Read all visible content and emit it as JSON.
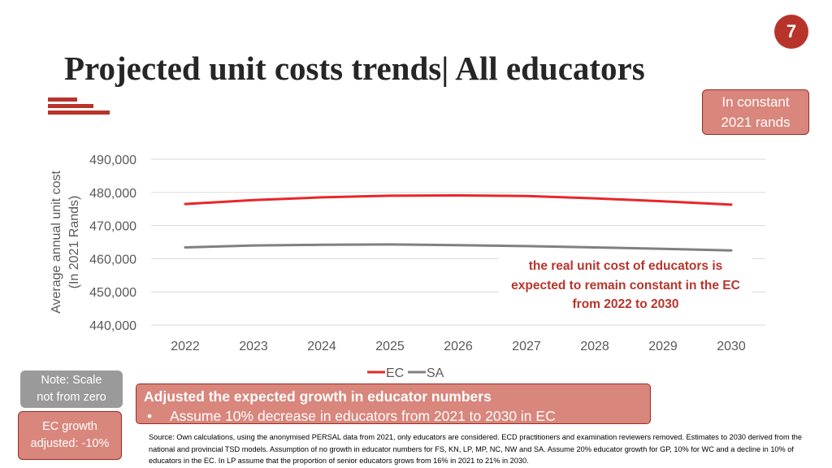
{
  "page_number": "7",
  "title": "Projected unit costs trends| All educators",
  "units_badge": {
    "line1": "In constant",
    "line2": "2021 rands"
  },
  "chart_data": {
    "type": "line",
    "x": [
      "2022",
      "2023",
      "2024",
      "2025",
      "2026",
      "2027",
      "2028",
      "2029",
      "2030"
    ],
    "series": [
      {
        "name": "EC",
        "color": "#e8262a",
        "values": [
          476500,
          477700,
          478500,
          479000,
          479100,
          478900,
          478200,
          477300,
          476300
        ]
      },
      {
        "name": "SA",
        "color": "#808080",
        "values": [
          463400,
          464000,
          464200,
          464300,
          464100,
          463800,
          463400,
          463000,
          462500
        ]
      }
    ],
    "ylabel": [
      "Average annual unit cost",
      "(In 2021 Rands)"
    ],
    "ylim": [
      440000,
      490000
    ],
    "yticks": [
      440000,
      450000,
      460000,
      470000,
      480000,
      490000
    ],
    "ytick_labels": [
      "440,000",
      "450,000",
      "460,000",
      "470,000",
      "480,000",
      "490,000"
    ],
    "grid": true,
    "legend_position": "bottom"
  },
  "annotation": {
    "line1": "the real unit cost of educators is",
    "line2": "expected to remain constant in the EC",
    "line3": "from 2022 to 2030"
  },
  "note_box": {
    "line1": "Note: Scale",
    "line2": "not from zero"
  },
  "adjust_box": {
    "line1": "EC growth",
    "line2": "adjusted: -10%"
  },
  "assumption_box": {
    "header": "Adjusted the expected growth in educator numbers",
    "bullet": "Assume 10% decrease in educators from 2021 to 2030 in EC"
  },
  "source_note": "Source: Own calculations, using the anonymised PERSAL data from 2021, only educators are considered. ECD practitioners and examination reviewers removed. Estimates to 2030 derived from the national and provincial TSD models. Assumption of no growth in educator numbers for FS, KN, LP, MP, NC, NW and SA. Assume 20% educator growth for GP, 10% for WC and a decline in 10% of educators in the EC. In LP assume that the proportion of senior educators grows from 16% in 2021 to 21% in 2030."
}
